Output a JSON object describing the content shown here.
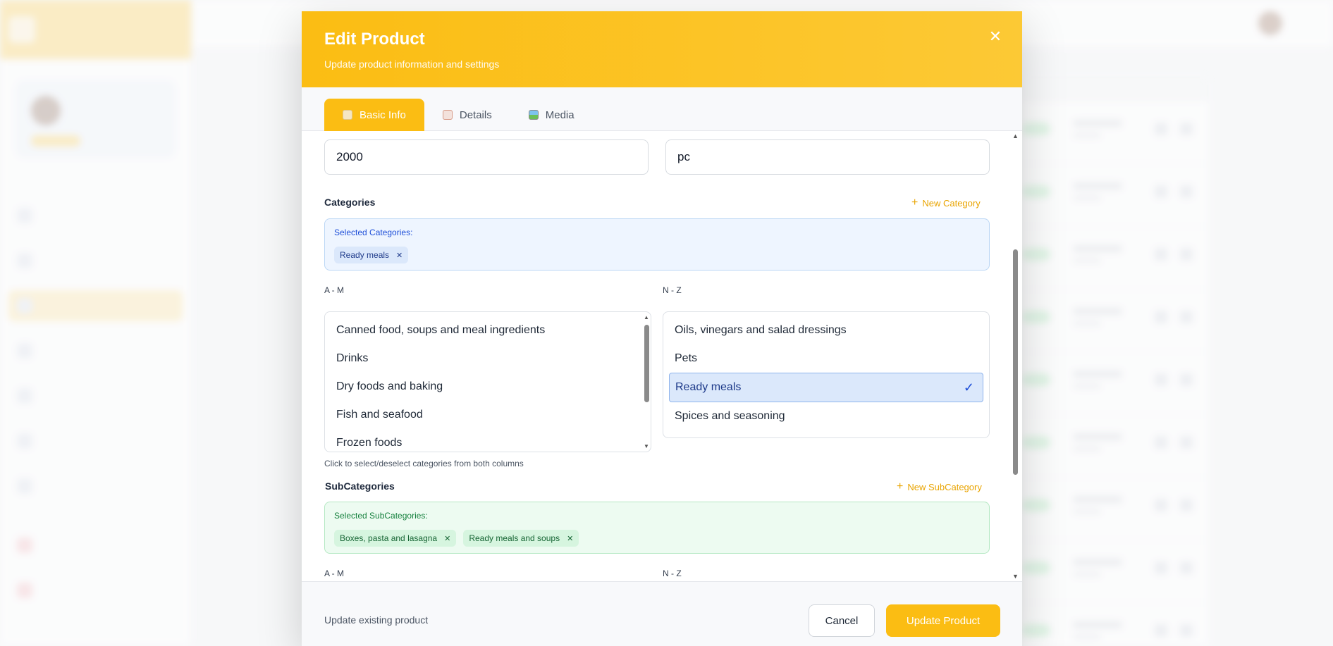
{
  "background": {
    "topbar_avatar": "avatar"
  },
  "modal": {
    "title": "Edit Product",
    "subtitle": "Update product information and settings",
    "close_icon": "close-icon"
  },
  "tabs": [
    {
      "label": "Basic Info",
      "icon": "clipboard-icon",
      "active": true
    },
    {
      "label": "Details",
      "icon": "memo-icon",
      "active": false
    },
    {
      "label": "Media",
      "icon": "image-icon",
      "active": false
    }
  ],
  "fields": {
    "stock_value": "2000",
    "unit_value": "pc"
  },
  "categories": {
    "title": "Categories",
    "new_label": "New Category",
    "selected_label": "Selected Categories:",
    "selected": [
      "Ready meals"
    ],
    "col_am_label": "A - M",
    "col_nz_label": "N - Z",
    "am_items": [
      "Canned food, soups and meal ingredients",
      "Drinks",
      "Dry foods and baking",
      "Fish and seafood",
      "Frozen foods"
    ],
    "nz_items": [
      "Oils, vinegars and salad dressings",
      "Pets",
      "Ready meals",
      "Spices and seasoning"
    ],
    "hint": "Click to select/deselect categories from both columns"
  },
  "subcategories": {
    "title": "SubCategories",
    "new_label": "New SubCategory",
    "selected_label": "Selected SubCategories:",
    "selected": [
      "Boxes, pasta and lasagna",
      "Ready meals and soups"
    ],
    "col_am_label": "A - M",
    "col_nz_label": "N - Z"
  },
  "footer": {
    "status": "Update existing product",
    "cancel_label": "Cancel",
    "submit_label": "Update Product"
  },
  "colors": {
    "accent": "#fbbd13",
    "selected_blue": "#dbe8fb",
    "selected_green": "#d6f5df"
  }
}
